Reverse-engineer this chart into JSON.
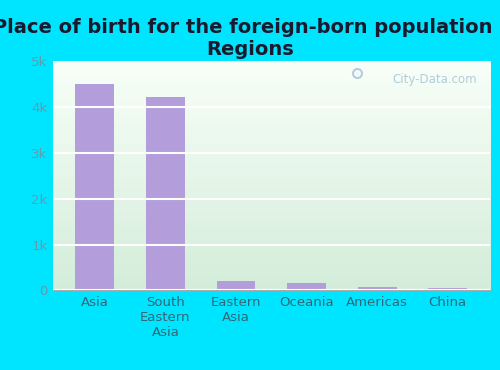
{
  "title": "Place of birth for the foreign-born population -\nRegions",
  "categories": [
    "Asia",
    "South\nEastern\nAsia",
    "Eastern\nAsia",
    "Oceania",
    "Americas",
    "China"
  ],
  "values": [
    4500,
    4220,
    200,
    165,
    68,
    50
  ],
  "bar_color": "#b39ddb",
  "background_color_outer": "#00e5ff",
  "gradient_top": "#d4edda",
  "gradient_bottom": "#f8fff8",
  "ylim": [
    0,
    5000
  ],
  "yticks": [
    0,
    1000,
    2000,
    3000,
    4000,
    5000
  ],
  "ytick_labels": [
    "0",
    "1k",
    "2k",
    "3k",
    "4k",
    "5k"
  ],
  "watermark": "City-Data.com",
  "title_fontsize": 14,
  "tick_fontsize": 9.5,
  "ytick_color": "#6699aa",
  "xtick_color": "#336677"
}
